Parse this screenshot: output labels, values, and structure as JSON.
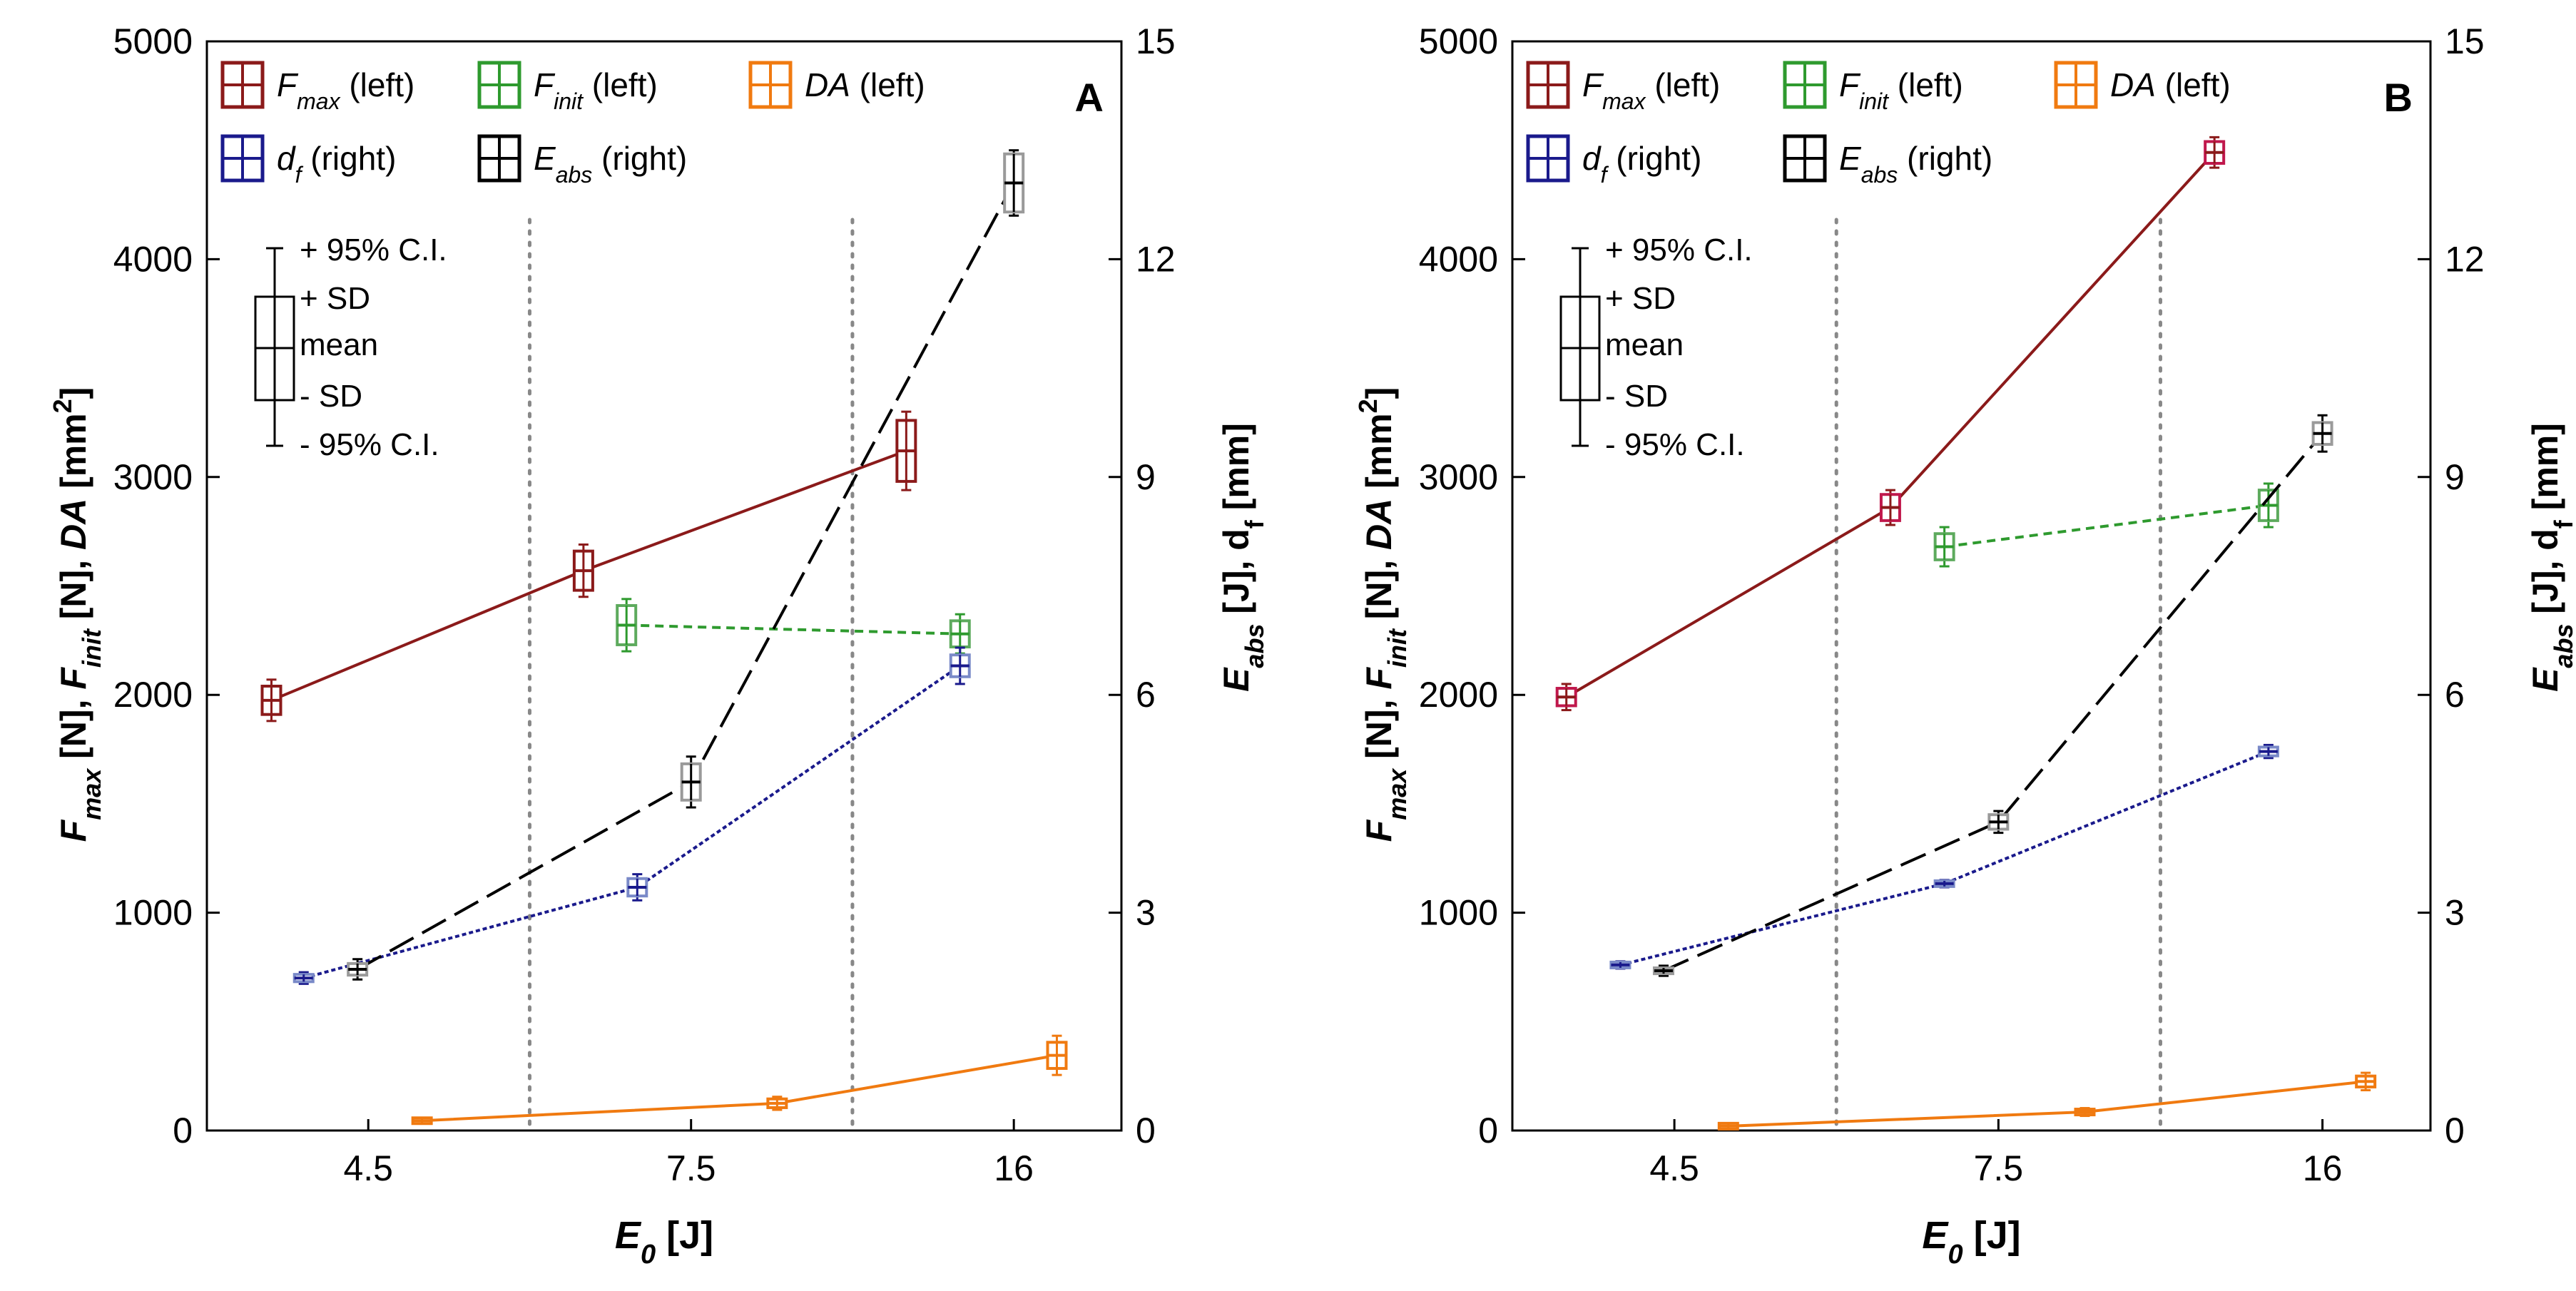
{
  "chart_data": [
    {
      "type": "scatter",
      "panel_label": "A",
      "x_axis": {
        "label": "E",
        "label_sub": "0",
        "label_unit": " [J]",
        "tick_labels": [
          "4.5",
          "7.5",
          "16"
        ],
        "group_separators": [
          6,
          9
        ]
      },
      "y_left": {
        "range": [
          0,
          5000
        ],
        "ticks": [
          "0",
          "1000",
          "2000",
          "3000",
          "4000",
          "5000"
        ]
      },
      "y_right": {
        "range": [
          0,
          15
        ],
        "ticks": [
          "0",
          "3",
          "6",
          "9",
          "12",
          "15"
        ]
      },
      "series": [
        {
          "name": "Fmax",
          "axis": "left",
          "color": "#8B1A1A",
          "box_color": "#8B1A1A",
          "line": "solid",
          "points": [
            {
              "x": 3.6,
              "mean": 1975,
              "sd": 65,
              "ci": 95
            },
            {
              "x": 6.5,
              "mean": 2570,
              "sd": 90,
              "ci": 120
            },
            {
              "x": 9.5,
              "mean": 3120,
              "sd": 140,
              "ci": 180
            }
          ]
        },
        {
          "name": "Finit",
          "axis": "left",
          "color": "#2E9A2E",
          "box_color": "#5DAA5D",
          "line": "dashed",
          "points": [
            {
              "x": 6.9,
              "mean": 2320,
              "sd": 90,
              "ci": 120
            },
            {
              "x": 10.0,
              "mean": 2280,
              "sd": 60,
              "ci": 90
            }
          ]
        },
        {
          "name": "DA",
          "axis": "left",
          "color": "#F07A10",
          "box_color": "#F07A10",
          "line": "solid",
          "points": [
            {
              "x": 5.0,
              "mean": 45,
              "sd": 8,
              "ci": 10
            },
            {
              "x": 8.3,
              "mean": 125,
              "sd": 20,
              "ci": 30
            },
            {
              "x": 10.9,
              "mean": 345,
              "sd": 60,
              "ci": 90
            }
          ]
        },
        {
          "name": "df",
          "axis": "right",
          "color": "#1A1A8C",
          "box_color": "#7A8AC8",
          "line": "dotted",
          "points": [
            {
              "x": 3.9,
              "mean": 2.1,
              "sd": 0.05,
              "ci": 0.08
            },
            {
              "x": 7.0,
              "mean": 3.35,
              "sd": 0.12,
              "ci": 0.18
            },
            {
              "x": 10.0,
              "mean": 6.4,
              "sd": 0.15,
              "ci": 0.25
            }
          ]
        },
        {
          "name": "Eabs",
          "axis": "right",
          "color": "#000000",
          "box_color": "#9A9A9A",
          "line": "longdash",
          "points": [
            {
              "x": 4.4,
              "mean": 2.22,
              "sd": 0.08,
              "ci": 0.14
            },
            {
              "x": 7.5,
              "mean": 4.8,
              "sd": 0.25,
              "ci": 0.35
            },
            {
              "x": 10.5,
              "mean": 13.05,
              "sd": 0.4,
              "ci": 0.45
            }
          ]
        }
      ]
    },
    {
      "type": "scatter",
      "panel_label": "B",
      "x_axis": {
        "label": "E",
        "label_sub": "0",
        "label_unit": " [J]",
        "tick_labels": [
          "4.5",
          "7.5",
          "16"
        ],
        "group_separators": [
          6,
          9
        ]
      },
      "y_left": {
        "range": [
          0,
          5000
        ],
        "ticks": [
          "0",
          "1000",
          "2000",
          "3000",
          "4000",
          "5000"
        ]
      },
      "y_right": {
        "range": [
          0,
          15
        ],
        "ticks": [
          "0",
          "3",
          "6",
          "9",
          "12",
          "15"
        ]
      },
      "series": [
        {
          "name": "Fmax",
          "axis": "left",
          "color": "#8B1A1A",
          "box_color": "#C0184C",
          "line": "solid",
          "points": [
            {
              "x": 3.5,
              "mean": 1990,
              "sd": 40,
              "ci": 60
            },
            {
              "x": 6.5,
              "mean": 2860,
              "sd": 60,
              "ci": 80
            },
            {
              "x": 9.5,
              "mean": 4490,
              "sd": 50,
              "ci": 70
            }
          ]
        },
        {
          "name": "Finit",
          "axis": "left",
          "color": "#2E9A2E",
          "box_color": "#5DAA5D",
          "line": "dashed",
          "points": [
            {
              "x": 7.0,
              "mean": 2680,
              "sd": 60,
              "ci": 90
            },
            {
              "x": 10.0,
              "mean": 2870,
              "sd": 70,
              "ci": 100
            }
          ]
        },
        {
          "name": "DA",
          "axis": "left",
          "color": "#F07A10",
          "box_color": "#F07A10",
          "line": "solid",
          "points": [
            {
              "x": 5.0,
              "mean": 20,
              "sd": 8,
              "ci": 12
            },
            {
              "x": 8.3,
              "mean": 85,
              "sd": 12,
              "ci": 18
            },
            {
              "x": 10.9,
              "mean": 225,
              "sd": 25,
              "ci": 40
            }
          ]
        },
        {
          "name": "df",
          "axis": "right",
          "color": "#1A1A8C",
          "box_color": "#7A8AC8",
          "line": "dotted",
          "points": [
            {
              "x": 4.0,
              "mean": 2.28,
              "sd": 0.03,
              "ci": 0.05
            },
            {
              "x": 7.0,
              "mean": 3.4,
              "sd": 0.03,
              "ci": 0.05
            },
            {
              "x": 10.0,
              "mean": 5.22,
              "sd": 0.06,
              "ci": 0.09
            }
          ]
        },
        {
          "name": "Eabs",
          "axis": "right",
          "color": "#000000",
          "box_color": "#9A9A9A",
          "line": "longdash",
          "points": [
            {
              "x": 4.4,
              "mean": 2.2,
              "sd": 0.04,
              "ci": 0.07
            },
            {
              "x": 7.5,
              "mean": 4.25,
              "sd": 0.1,
              "ci": 0.15
            },
            {
              "x": 10.5,
              "mean": 9.6,
              "sd": 0.15,
              "ci": 0.25
            }
          ]
        }
      ]
    }
  ],
  "legend": [
    {
      "id": "Fmax",
      "main": "F",
      "sub": "max",
      "suffix": " (left)",
      "color": "#8B1A1A"
    },
    {
      "id": "Finit",
      "main": "F",
      "sub": "init",
      "suffix": " (left)",
      "color": "#2E9A2E"
    },
    {
      "id": "DA",
      "main": "DA",
      "sub": "",
      "suffix": " (left)",
      "color": "#F07A10"
    },
    {
      "id": "df",
      "main": "d",
      "sub": "f",
      "suffix": " (right)",
      "color": "#1A1A8C"
    },
    {
      "id": "Eabs",
      "main": "E",
      "sub": "abs",
      "suffix": " (right)",
      "color": "#000000"
    }
  ],
  "box_key": {
    "ci_upper": "+ 95% C.I.",
    "sd_upper": "+ SD",
    "mean": "mean",
    "sd_lower": "- SD",
    "ci_lower": "- 95% C.I."
  },
  "y_left_label": {
    "parts": [
      {
        "t": "F",
        "i": true
      },
      {
        "t": "max",
        "sub": true,
        "i": true
      },
      {
        "t": " [N], "
      },
      {
        "t": "F",
        "i": true
      },
      {
        "t": "init",
        "sub": true,
        "i": true
      },
      {
        "t": " [N], "
      },
      {
        "t": "DA",
        "i": true
      },
      {
        "t": " [mm"
      },
      {
        "t": "2",
        "sup": true
      },
      {
        "t": "]"
      }
    ]
  },
  "y_right_label": {
    "parts": [
      {
        "t": "E",
        "i": true
      },
      {
        "t": "abs",
        "sub": true,
        "i": true
      },
      {
        "t": " [J], d"
      },
      {
        "t": "f",
        "sub": true
      },
      {
        "t": " [mm]"
      }
    ]
  }
}
